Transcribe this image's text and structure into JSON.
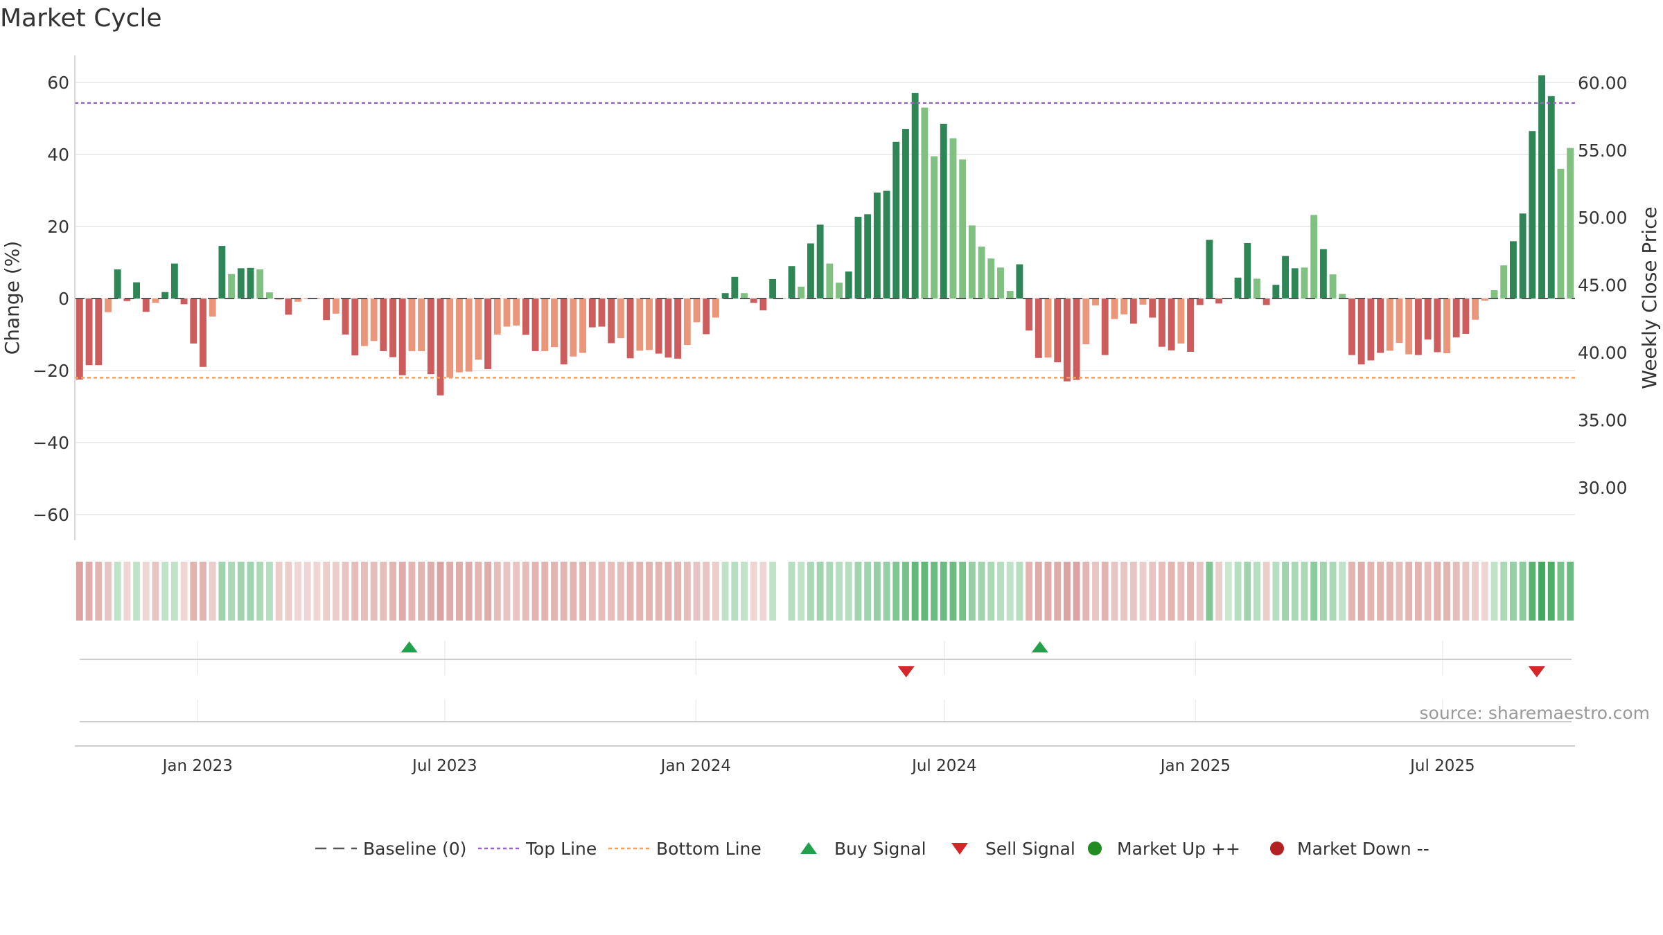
{
  "title": "Market Cycle",
  "source": "source: sharemaestro.com",
  "colors": {
    "up_strong": "#2e8555",
    "up_light": "#80c081",
    "down_strong": "#cd5c5c",
    "down_light": "#e9967a",
    "top_line": "#9467bd",
    "bottom_line": "#f0a060",
    "buy": "#22a04b",
    "sell": "#d62728",
    "baseline": "#555555",
    "market_up": "#228b22",
    "market_down": "#b22222"
  },
  "chart_data": {
    "type": "bar",
    "title": "Market Cycle",
    "ylabel": "Change (%)",
    "y2label": "Weekly Close Price",
    "ylim": [
      -67,
      67
    ],
    "y2lim": [
      26.12,
      61.89
    ],
    "yticks": [
      60,
      40,
      20,
      0,
      -20,
      -40,
      -60
    ],
    "yticklabels": [
      "60",
      "40",
      "20",
      "0",
      "−20",
      "−40",
      "−60"
    ],
    "y2ticks": [
      60,
      55,
      50,
      45,
      40,
      35,
      30
    ],
    "y2ticklabels": [
      "60.00",
      "55.00",
      "50.00",
      "45.00",
      "40.00",
      "35.00",
      "30.00"
    ],
    "x_start": "2022-10-03",
    "x_end": "2025-10-06",
    "xticks": [
      "2023-01-01",
      "2023-07-01",
      "2024-01-01",
      "2024-07-01",
      "2025-01-01",
      "2025-07-01"
    ],
    "xticklabels": [
      "Jan 2023",
      "Jul 2023",
      "Jan 2024",
      "Jul 2024",
      "Jan 2025",
      "Jul 2025"
    ],
    "top_line": 54.3,
    "bottom_line": -22,
    "values": [
      -22.5,
      -18.5,
      -18.5,
      -3.8,
      8.1,
      -0.7,
      4.5,
      -3.7,
      -1.2,
      1.8,
      9.7,
      -1.6,
      -12.5,
      -19,
      -5,
      14.6,
      6.8,
      8.4,
      8.5,
      8.1,
      1.7,
      -0.3,
      -4.5,
      -0.9,
      -0.2,
      -0.2,
      -6,
      -4.2,
      -10,
      -15.8,
      -13.2,
      -11.8,
      -14.6,
      -16.3,
      -21.3,
      -14.6,
      -14.6,
      -21,
      -26.9,
      -21.9,
      -20.5,
      -20.3,
      -17,
      -19.6,
      -10,
      -7.8,
      -7.5,
      -10.1,
      -14.6,
      -14.6,
      -13.5,
      -18.3,
      -16.1,
      -15.1,
      -8,
      -7.8,
      -12.4,
      -11,
      -16.6,
      -14.5,
      -14.3,
      -15.3,
      -16.4,
      -16.7,
      -12.9,
      -6.6,
      -9.9,
      -5.3,
      1.5,
      6,
      1.5,
      -1.2,
      -3.3,
      5.4,
      0,
      9,
      3.3,
      15.3,
      20.5,
      9.7,
      4.4,
      7.5,
      22.7,
      23.4,
      29.4,
      29.9,
      43.5,
      47.1,
      57.1,
      53,
      39.5,
      48.5,
      44.5,
      38.6,
      20.3,
      14.4,
      11.1,
      8.6,
      2.1,
      9.5,
      -8.9,
      -16.5,
      -16.4,
      -17.7,
      -23,
      -22.6,
      -12.7,
      -1.9,
      -15.7,
      -5.7,
      -4.4,
      -7,
      -1.7,
      -5.3,
      -13.4,
      -14.4,
      -12.5,
      -14.8,
      -1.8,
      16.3,
      -1.4,
      0,
      5.8,
      15.4,
      5.5,
      -1.8,
      3.8,
      11.8,
      8.4,
      8.6,
      23.2,
      13.7,
      6.7,
      1.3,
      -15.7,
      -18.3,
      -17.2,
      -15.1,
      -14.5,
      -12.3,
      -15.5,
      -15.7,
      -11.4,
      -14.9,
      -15.2,
      -10.8,
      -9.8,
      -5.9,
      -0.6,
      2.3,
      9.2,
      15.9,
      23.6,
      46.5,
      62,
      56.2,
      36,
      41.8
    ],
    "shades": [
      1,
      1,
      1,
      0,
      1,
      1,
      1,
      1,
      0,
      1,
      1,
      1,
      1,
      1,
      0,
      1,
      0,
      1,
      1,
      0,
      0,
      0,
      1,
      0,
      0,
      0,
      1,
      0,
      1,
      1,
      0,
      0,
      1,
      1,
      1,
      0,
      0,
      1,
      1,
      0,
      0,
      0,
      0,
      1,
      0,
      0,
      0,
      1,
      1,
      0,
      0,
      1,
      0,
      0,
      1,
      1,
      1,
      0,
      1,
      0,
      0,
      1,
      1,
      1,
      0,
      0,
      1,
      0,
      1,
      1,
      0,
      1,
      1,
      1,
      0,
      1,
      0,
      1,
      1,
      0,
      0,
      1,
      1,
      1,
      1,
      1,
      1,
      1,
      1,
      0,
      0,
      1,
      0,
      0,
      0,
      0,
      0,
      0,
      0,
      1,
      1,
      1,
      0,
      1,
      1,
      1,
      0,
      0,
      1,
      0,
      0,
      1,
      0,
      1,
      1,
      1,
      0,
      1,
      1,
      1,
      1,
      0,
      1,
      1,
      0,
      1,
      1,
      1,
      1,
      0,
      0,
      1,
      0,
      0,
      1,
      1,
      1,
      1,
      0,
      0,
      0,
      1,
      1,
      1,
      0,
      1,
      1,
      0,
      0,
      0,
      0,
      1,
      1,
      1,
      1,
      1,
      0,
      0,
      1
    ],
    "strip_intensity": [
      0.55,
      0.5,
      0.45,
      0.35,
      0.3,
      0.25,
      0.3,
      0.25,
      0.35,
      0.3,
      0.3,
      0.25,
      0.45,
      0.45,
      0.3,
      0.45,
      0.4,
      0.45,
      0.45,
      0.4,
      0.35,
      0.3,
      0.3,
      0.25,
      0.25,
      0.25,
      0.3,
      0.3,
      0.35,
      0.4,
      0.4,
      0.4,
      0.4,
      0.45,
      0.5,
      0.45,
      0.45,
      0.5,
      0.55,
      0.5,
      0.5,
      0.5,
      0.45,
      0.5,
      0.4,
      0.35,
      0.35,
      0.4,
      0.45,
      0.45,
      0.45,
      0.45,
      0.45,
      0.45,
      0.4,
      0.4,
      0.4,
      0.4,
      0.45,
      0.45,
      0.45,
      0.45,
      0.45,
      0.45,
      0.4,
      0.35,
      0.35,
      0.3,
      0.3,
      0.35,
      0.3,
      0.25,
      0.25,
      0.3,
      0,
      0.35,
      0.3,
      0.4,
      0.45,
      0.4,
      0.35,
      0.35,
      0.45,
      0.45,
      0.5,
      0.5,
      0.6,
      0.65,
      0.75,
      0.75,
      0.7,
      0.7,
      0.7,
      0.65,
      0.5,
      0.45,
      0.4,
      0.35,
      0.3,
      0.35,
      0.45,
      0.5,
      0.5,
      0.5,
      0.55,
      0.55,
      0.45,
      0.35,
      0.45,
      0.35,
      0.35,
      0.35,
      0.3,
      0.35,
      0.4,
      0.45,
      0.4,
      0.45,
      0.35,
      0.6,
      0.3,
      0.25,
      0.35,
      0.45,
      0.35,
      0.3,
      0.35,
      0.45,
      0.4,
      0.4,
      0.55,
      0.45,
      0.4,
      0.3,
      0.45,
      0.5,
      0.45,
      0.45,
      0.45,
      0.4,
      0.45,
      0.45,
      0.4,
      0.45,
      0.45,
      0.4,
      0.35,
      0.3,
      0.25,
      0.3,
      0.4,
      0.5,
      0.55,
      0.8,
      0.9,
      0.85,
      0.65,
      0.7
    ],
    "buy_signals": [
      "2023-06-05",
      "2024-09-09"
    ],
    "sell_signals": [
      "2024-06-03",
      "2025-09-08"
    ],
    "legend": [
      {
        "key": "baseline",
        "label": "Baseline (0)",
        "marker": "dash"
      },
      {
        "key": "top",
        "label": "Top Line",
        "marker": "dot-purple"
      },
      {
        "key": "bottom",
        "label": "Bottom Line",
        "marker": "dot-orange"
      },
      {
        "key": "buy",
        "label": "Buy Signal",
        "marker": "triangle-up"
      },
      {
        "key": "sell",
        "label": "Sell Signal",
        "marker": "triangle-down"
      },
      {
        "key": "up",
        "label": "Market Up ++",
        "marker": "circle-green"
      },
      {
        "key": "down",
        "label": "Market Down --",
        "marker": "circle-red"
      }
    ],
    "legend_position": "bottom",
    "grid": true
  }
}
